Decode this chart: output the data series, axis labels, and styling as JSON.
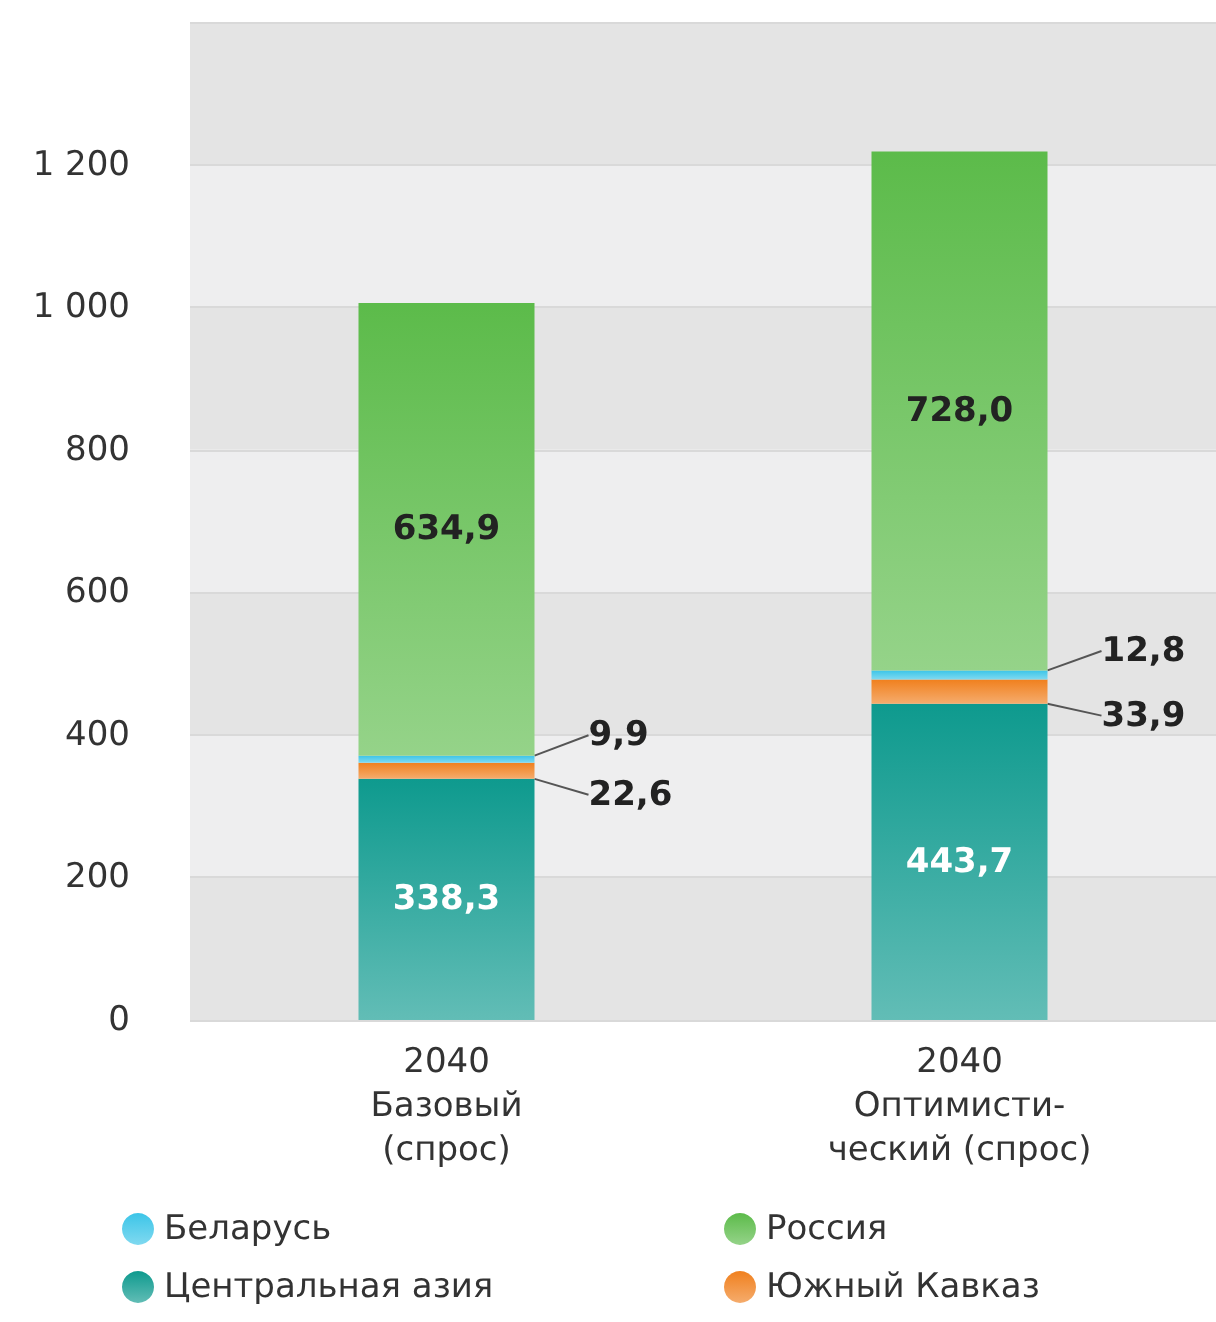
{
  "chart_data": {
    "type": "bar",
    "stacked": true,
    "categories": [
      "2040\nБазовый\n(спрос)",
      "2040\nОптимисти-\nческий (спрос)"
    ],
    "series": [
      {
        "name": "Центральная азия",
        "color": "#0e9a8e",
        "values": [
          338.3,
          443.7
        ],
        "value_labels": [
          "338,3",
          "443,7"
        ]
      },
      {
        "name": "Южный Кавказ",
        "color": "#f0801e",
        "values": [
          22.6,
          33.9
        ],
        "value_labels": [
          "22,6",
          "33,9"
        ]
      },
      {
        "name": "Беларусь",
        "color": "#3cc5e8",
        "values": [
          9.9,
          12.8
        ],
        "value_labels": [
          "9,9",
          "12,8"
        ]
      },
      {
        "name": "Россия",
        "color": "#5cbb4a",
        "values": [
          634.9,
          728.0
        ],
        "value_labels": [
          "634,9",
          "728,0"
        ]
      }
    ],
    "ylim": [
      0,
      1400
    ],
    "yticks": [
      0,
      200,
      400,
      600,
      800,
      {
        "value": 1000,
        "label": "1 000"
      },
      {
        "value": 1200,
        "label": "1 200"
      },
      {
        "value": 1400,
        "label": null
      }
    ],
    "grid": true,
    "legend": "bottom"
  }
}
